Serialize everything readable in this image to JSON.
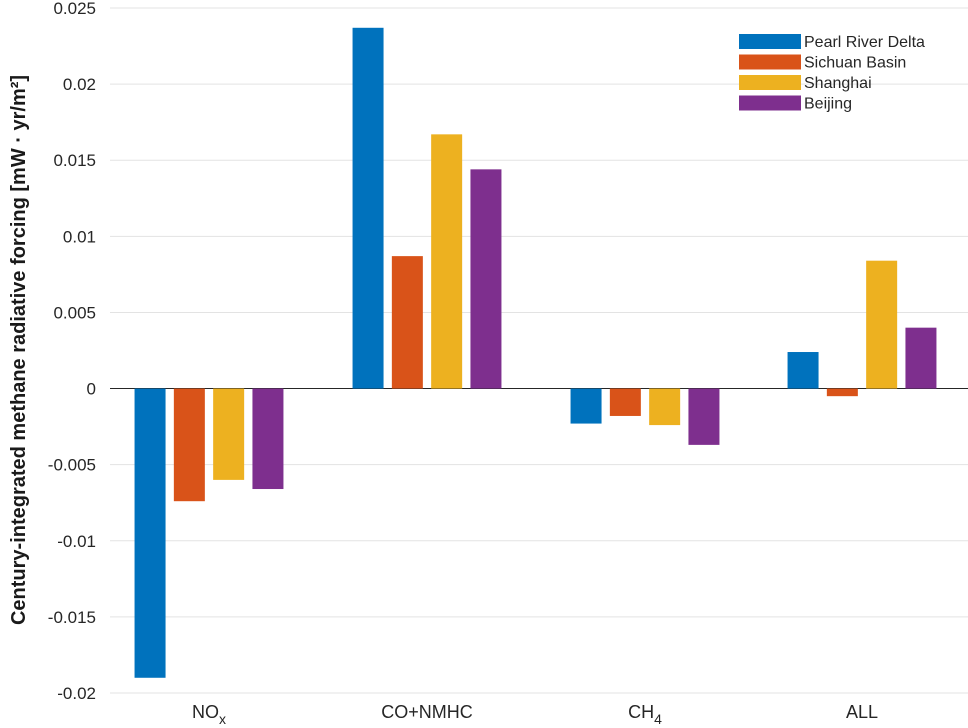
{
  "chart_data": {
    "type": "bar",
    "title": "",
    "ylabel": "Century-integrated methane radiative forcing [mW · yr/m²]",
    "xlabel": "",
    "ylim": [
      -0.02,
      0.025
    ],
    "yticks": [
      -0.02,
      -0.015,
      -0.01,
      -0.005,
      0,
      0.005,
      0.01,
      0.015,
      0.02,
      0.025
    ],
    "ytick_labels": [
      "-0.02",
      "-0.015",
      "-0.01",
      "-0.005",
      "0",
      "0.005",
      "0.01",
      "0.015",
      "0.02",
      "0.025"
    ],
    "grid": true,
    "legend_position": "top-right",
    "categories": [
      {
        "base": "NO",
        "sub": "x"
      },
      {
        "base": "CO+NMHC",
        "sub": ""
      },
      {
        "base": "CH",
        "sub": "4"
      },
      {
        "base": "ALL",
        "sub": ""
      }
    ],
    "series": [
      {
        "name": "Pearl River Delta",
        "color": "#0072BD",
        "values": [
          -0.019,
          0.0237,
          -0.0023,
          0.0024
        ]
      },
      {
        "name": "Sichuan Basin",
        "color": "#D95319",
        "values": [
          -0.0074,
          0.0087,
          -0.0018,
          -0.0005
        ]
      },
      {
        "name": "Shanghai",
        "color": "#EDB120",
        "values": [
          -0.006,
          0.0167,
          -0.0024,
          0.0084
        ]
      },
      {
        "name": "Beijing",
        "color": "#7E2F8E",
        "values": [
          -0.0066,
          0.0144,
          -0.0037,
          0.004
        ]
      }
    ]
  }
}
